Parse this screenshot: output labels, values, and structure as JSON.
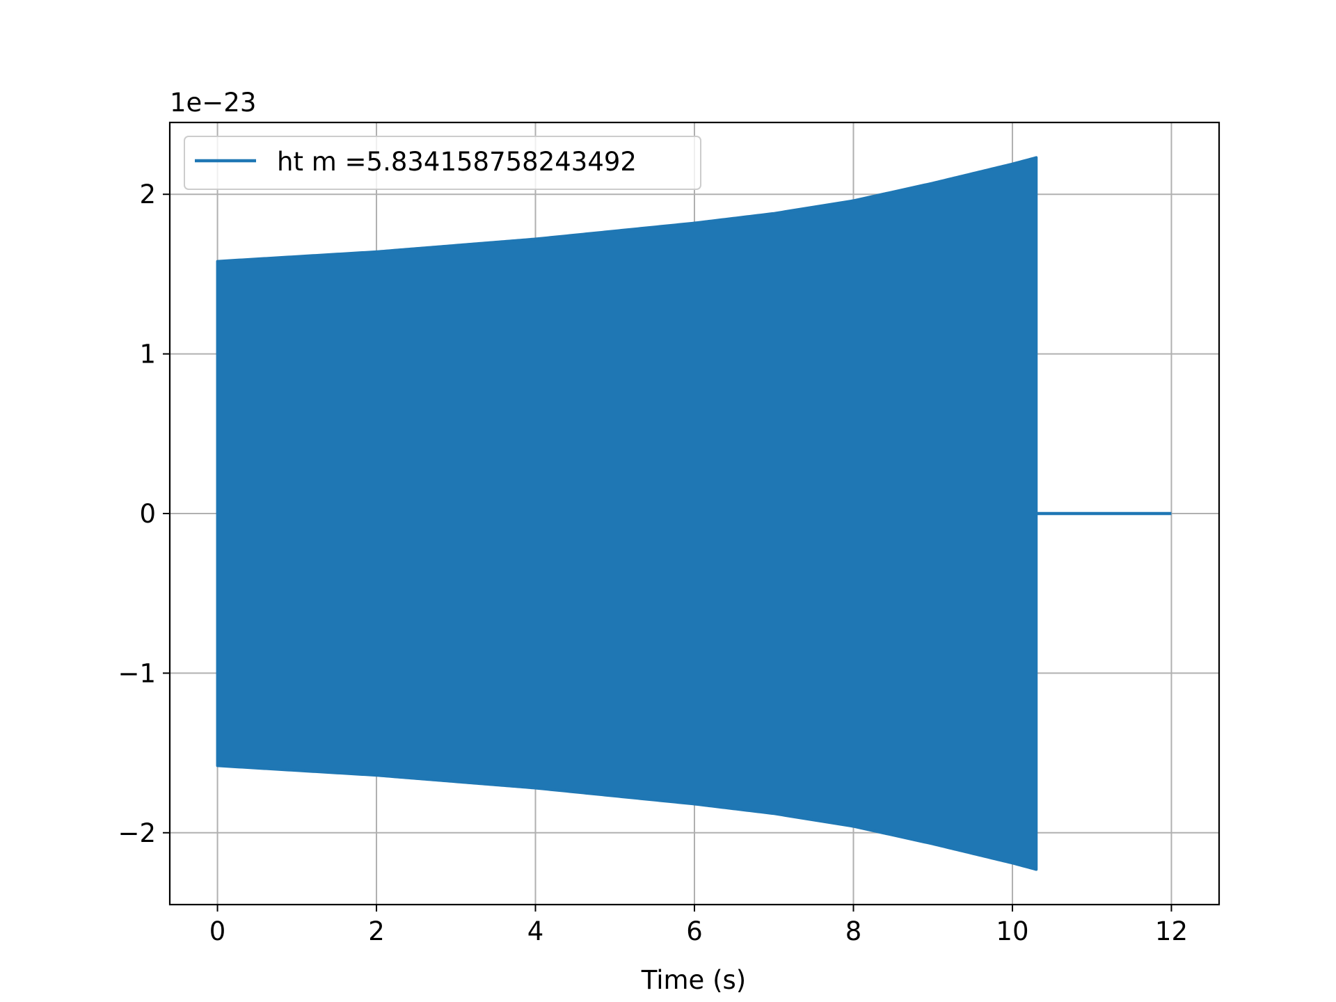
{
  "chart_data": {
    "type": "line",
    "title": "",
    "xlabel": "Time (s)",
    "ylabel": "",
    "offset_label": "1e−23",
    "xlim": [
      -0.6,
      12.6
    ],
    "ylim": [
      -2.45,
      2.45
    ],
    "x_ticks": [
      0,
      2,
      4,
      6,
      8,
      10,
      12
    ],
    "x_tick_labels": [
      "0",
      "2",
      "4",
      "6",
      "8",
      "10",
      "12"
    ],
    "y_ticks": [
      -2,
      -1,
      0,
      1,
      2
    ],
    "y_tick_labels": [
      "−2",
      "−1",
      "0",
      "1",
      "2"
    ],
    "grid": true,
    "legend_position": "upper-left",
    "series": [
      {
        "name": "ht m =5.834158758243492",
        "color": "#1f77b4",
        "style": "dense oscillation (filled band)",
        "envelope": {
          "t": [
            0,
            1,
            2,
            3,
            4,
            5,
            6,
            7,
            8,
            9,
            9.5,
            10,
            10.3
          ],
          "amp": [
            1.58,
            1.61,
            1.64,
            1.68,
            1.72,
            1.77,
            1.82,
            1.88,
            1.96,
            2.07,
            2.13,
            2.19,
            2.23
          ]
        },
        "signal_end": 10.3,
        "flat_segment": {
          "x": [
            10.3,
            12.0
          ],
          "y": [
            0,
            0
          ]
        }
      }
    ]
  }
}
